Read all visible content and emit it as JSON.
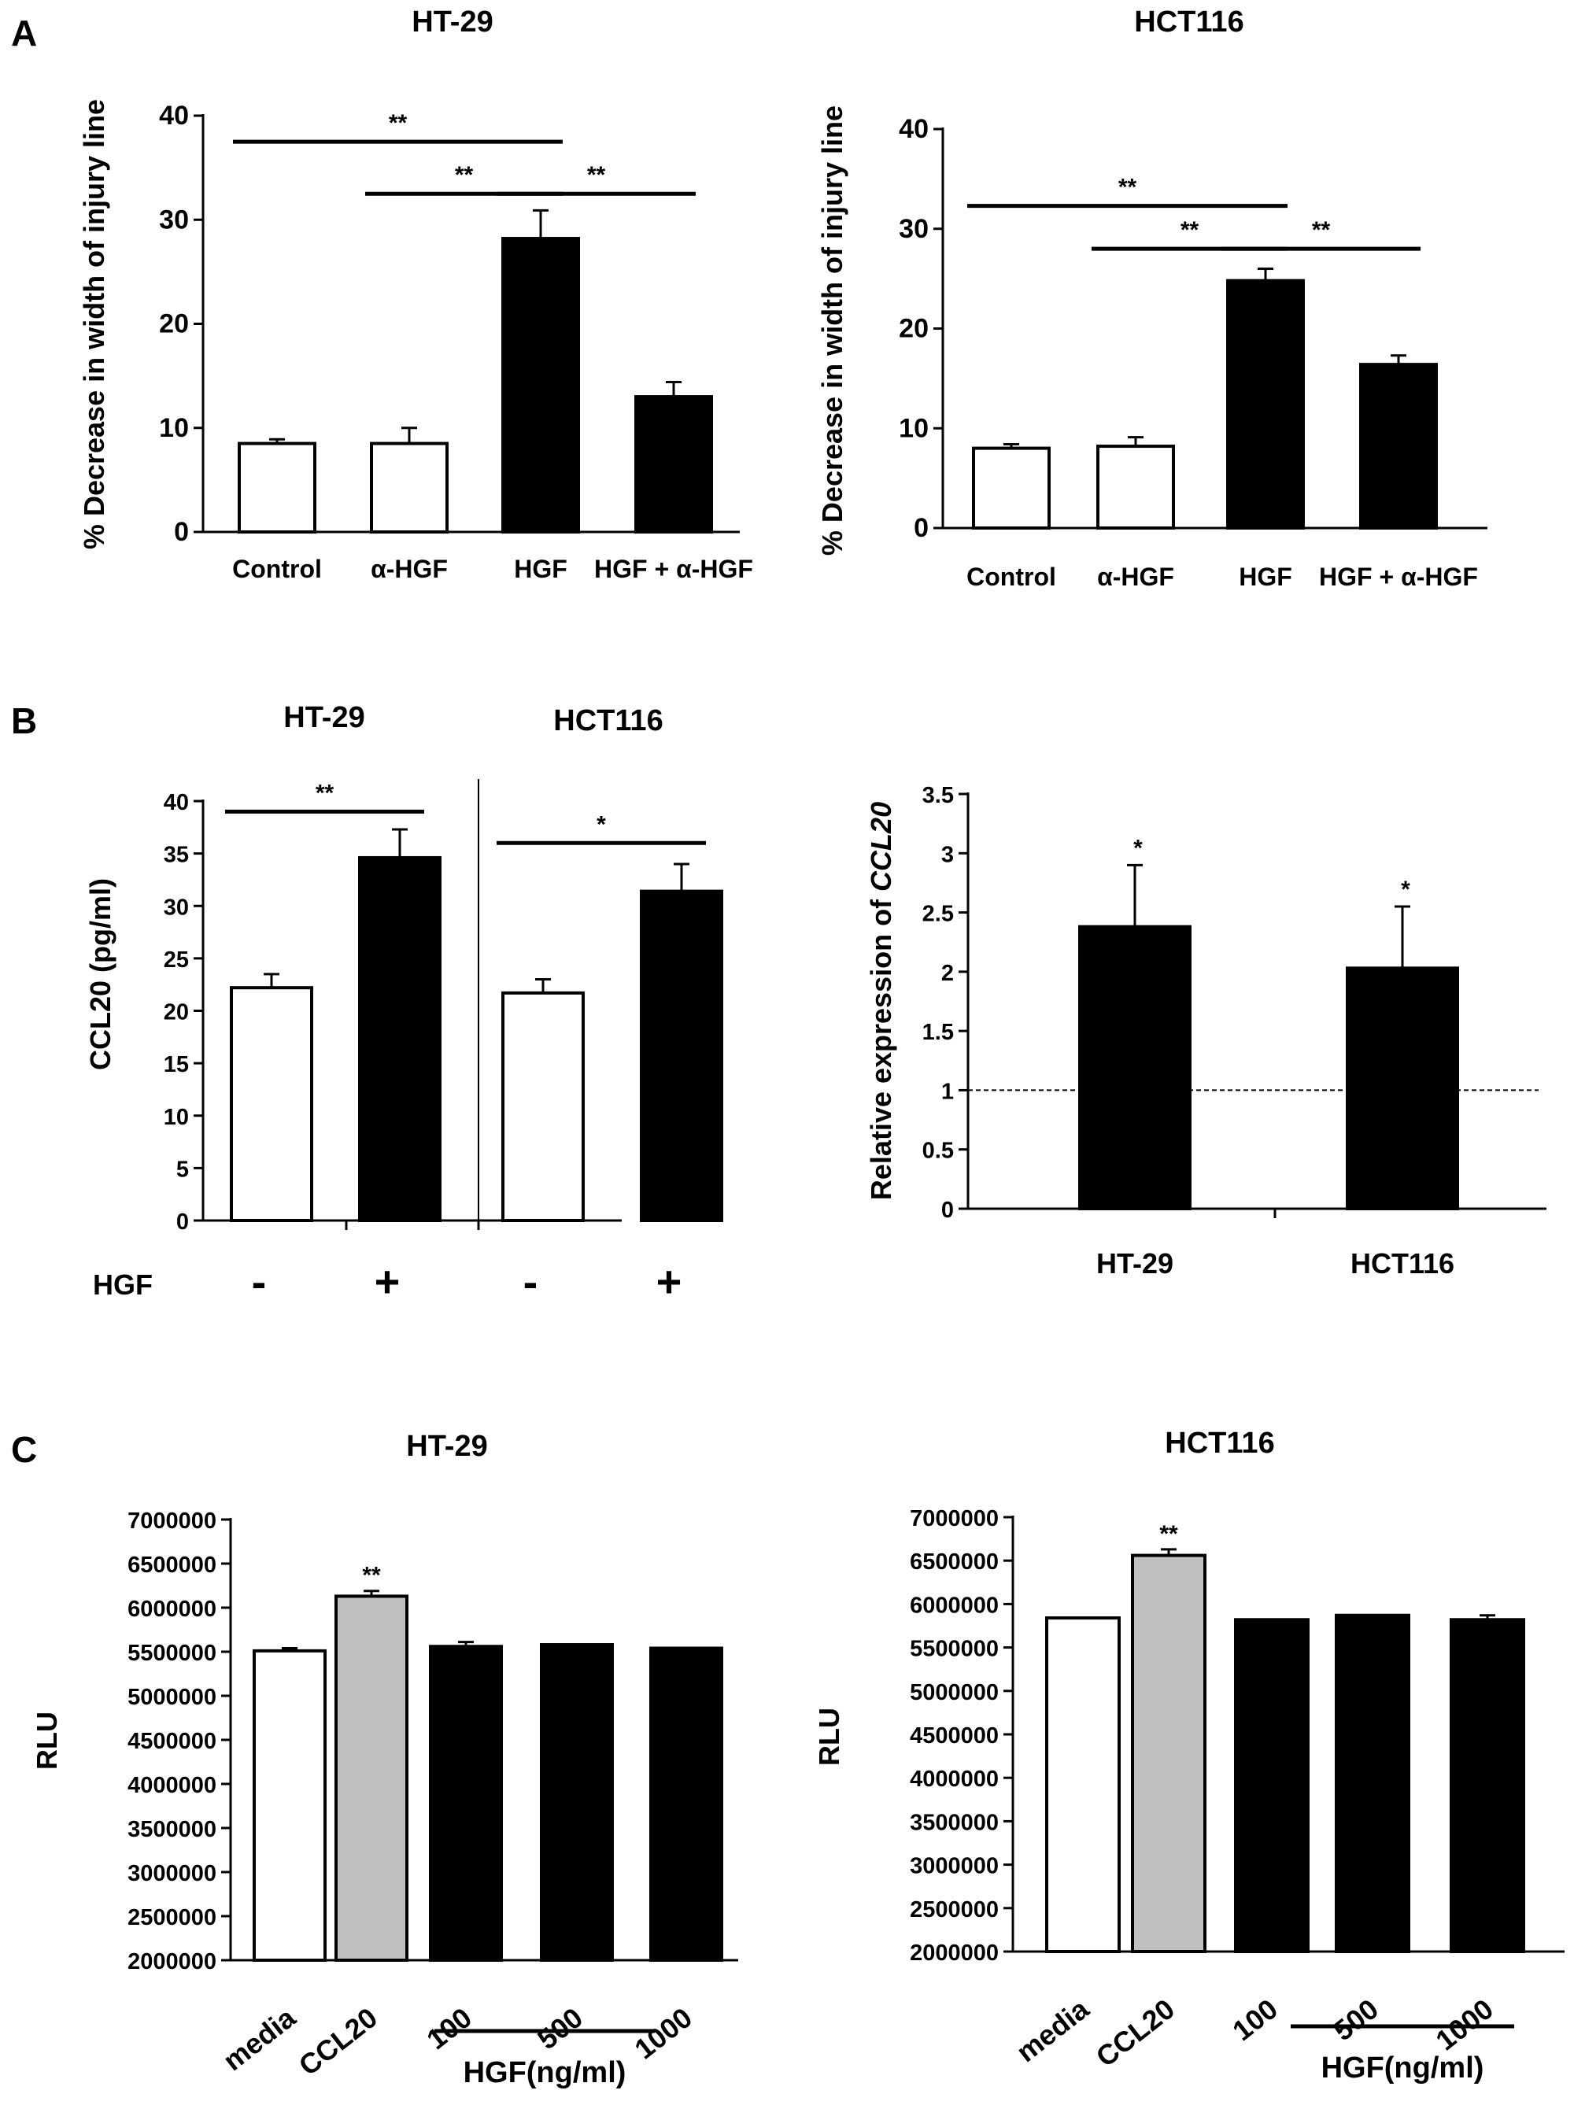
{
  "panels": {
    "A": "A",
    "B": "B",
    "C": "C"
  },
  "chart_data": [
    {
      "id": "A1",
      "type": "bar",
      "title": "HT-29",
      "ylabel": "% Decrease in width of injury line",
      "ylim": [
        0,
        40
      ],
      "yticks": [
        "0",
        "10",
        "20",
        "30",
        "40"
      ],
      "categories": [
        "Control",
        "α-HGF",
        "HGF",
        "HGF + α-HGF"
      ],
      "values": [
        8.5,
        8.5,
        28.2,
        13.0
      ],
      "errors": [
        0.4,
        1.5,
        2.7,
        1.4
      ],
      "fills": [
        "#ffffff",
        "#ffffff",
        "#000000",
        "#000000"
      ],
      "significance": [
        {
          "from": 0,
          "to": 2,
          "label": "**",
          "y": 37.5
        },
        {
          "from": 1,
          "to": 2,
          "label": "**",
          "y": 32.5
        },
        {
          "from": 2,
          "to": 3,
          "label": "**",
          "y": 32.5
        }
      ]
    },
    {
      "id": "A2",
      "type": "bar",
      "title": "HCT116",
      "ylabel": "% Decrease in width of injury line",
      "ylim": [
        0,
        40
      ],
      "yticks": [
        "0",
        "10",
        "20",
        "30",
        "40"
      ],
      "categories": [
        "Control",
        "α-HGF",
        "HGF",
        "HGF + α-HGF"
      ],
      "values": [
        8.0,
        8.2,
        24.8,
        16.4
      ],
      "errors": [
        0.4,
        0.9,
        1.2,
        0.9
      ],
      "fills": [
        "#ffffff",
        "#ffffff",
        "#000000",
        "#000000"
      ],
      "significance": [
        {
          "from": 0,
          "to": 2,
          "label": "**",
          "y": 32.3
        },
        {
          "from": 1,
          "to": 2,
          "label": "**",
          "y": 28.0
        },
        {
          "from": 2,
          "to": 3,
          "label": "**",
          "y": 28.0
        }
      ]
    },
    {
      "id": "B1",
      "type": "bar",
      "group_titles": [
        "HT-29",
        "HCT116"
      ],
      "ylabel": "CCL20 (pg/ml)",
      "ylim": [
        0,
        40
      ],
      "yticks": [
        "0",
        "5",
        "10",
        "15",
        "20",
        "25",
        "30",
        "35",
        "40"
      ],
      "row_label": "HGF",
      "categories": [
        "-",
        "+",
        "-",
        "+"
      ],
      "values": [
        22.2,
        34.6,
        21.7,
        31.4
      ],
      "errors": [
        1.3,
        2.7,
        1.3,
        2.6
      ],
      "fills": [
        "#ffffff",
        "#000000",
        "#ffffff",
        "#000000"
      ],
      "significance": [
        {
          "from": 0,
          "to": 1,
          "label": "**",
          "y": 39.0
        },
        {
          "from": 2,
          "to": 3,
          "label": "*",
          "y": 36.0
        }
      ]
    },
    {
      "id": "B2",
      "type": "bar",
      "ylabel_prefix": "Relative expression of ",
      "ylabel_italic": "CCL20",
      "ylim": [
        0,
        3.5
      ],
      "yticks": [
        "0",
        "0.5",
        "1",
        "1.5",
        "2",
        "2.5",
        "3",
        "3.5"
      ],
      "categories": [
        "HT-29",
        "HCT116"
      ],
      "values": [
        2.38,
        2.03
      ],
      "errors": [
        0.52,
        0.52
      ],
      "fills": [
        "#000000",
        "#000000"
      ],
      "reference_line": 1,
      "marks": [
        "*",
        "*"
      ]
    },
    {
      "id": "C1",
      "type": "bar",
      "title": "HT-29",
      "ylabel": "RLU",
      "ylim": [
        2000000,
        7000000
      ],
      "yticks": [
        "2000000",
        "2500000",
        "3000000",
        "3500000",
        "4000000",
        "4500000",
        "5000000",
        "5500000",
        "6000000",
        "6500000",
        "7000000"
      ],
      "categories": [
        "media",
        "CCL20",
        "100",
        "500",
        "1000"
      ],
      "values": [
        5510000,
        6130000,
        5560000,
        5580000,
        5540000
      ],
      "errors": [
        30000,
        60000,
        50000,
        0,
        0
      ],
      "fills": [
        "#ffffff",
        "#c0c0c0",
        "#000000",
        "#000000",
        "#000000"
      ],
      "marks": [
        "",
        "**",
        "",
        "",
        ""
      ],
      "group_label": "HGF(ng/ml)"
    },
    {
      "id": "C2",
      "type": "bar",
      "title": "HCT116",
      "ylabel": "RLU",
      "ylim": [
        2000000,
        7000000
      ],
      "yticks": [
        "2000000",
        "2500000",
        "3000000",
        "3500000",
        "4000000",
        "4500000",
        "5000000",
        "5500000",
        "6000000",
        "6500000",
        "7000000"
      ],
      "categories": [
        "media",
        "CCL20",
        "100",
        "500",
        "1000"
      ],
      "values": [
        5840000,
        6560000,
        5820000,
        5870000,
        5820000
      ],
      "errors": [
        0,
        70000,
        0,
        0,
        50000
      ],
      "fills": [
        "#ffffff",
        "#c0c0c0",
        "#000000",
        "#000000",
        "#000000"
      ],
      "marks": [
        "",
        "**",
        "",
        "",
        ""
      ],
      "group_label": "HGF(ng/ml)"
    }
  ]
}
